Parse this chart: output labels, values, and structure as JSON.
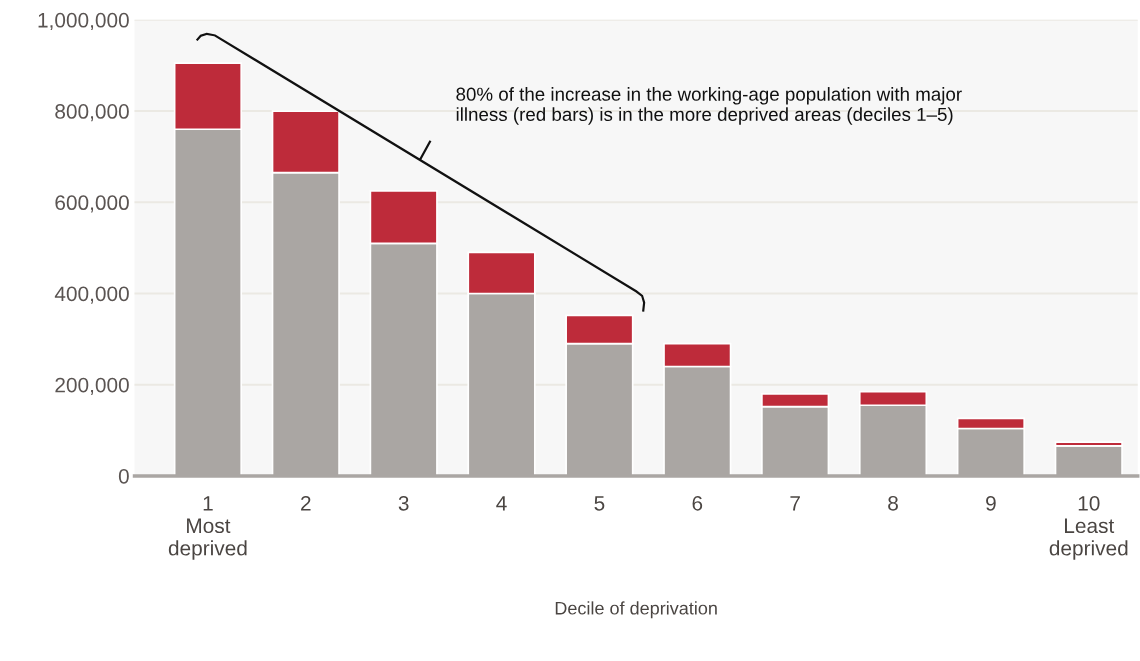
{
  "chart_data": {
    "type": "bar",
    "stacked": true,
    "categories": [
      "1\nMost\ndeprived",
      "2",
      "3",
      "4",
      "5",
      "6",
      "7",
      "8",
      "9",
      "10\nLeast\ndeprived"
    ],
    "series": [
      {
        "color": "#aaa6a3",
        "values": [
          760000,
          665000,
          510000,
          400000,
          290000,
          240000,
          152000,
          155000,
          104000,
          66000
        ]
      },
      {
        "color": "#be2b3a",
        "values": [
          145000,
          135000,
          115000,
          90000,
          62000,
          50000,
          28000,
          30000,
          22000,
          8000
        ]
      }
    ],
    "xlabel": "Decile of deprivation",
    "ylim": [
      0,
      1000000
    ],
    "yticks": [
      {
        "value": 0,
        "label": "0"
      },
      {
        "value": 200000,
        "label": "200,000"
      },
      {
        "value": 400000,
        "label": "400,000"
      },
      {
        "value": 600000,
        "label": "600,000"
      },
      {
        "value": 800000,
        "label": "800,000"
      },
      {
        "value": 1000000,
        "label": "1,000,000"
      }
    ],
    "grid": "y",
    "annotations": [
      "80% of the increase in the working-age population with major\nillness (red bars) is in the more deprived areas (deciles 1–5)"
    ]
  }
}
